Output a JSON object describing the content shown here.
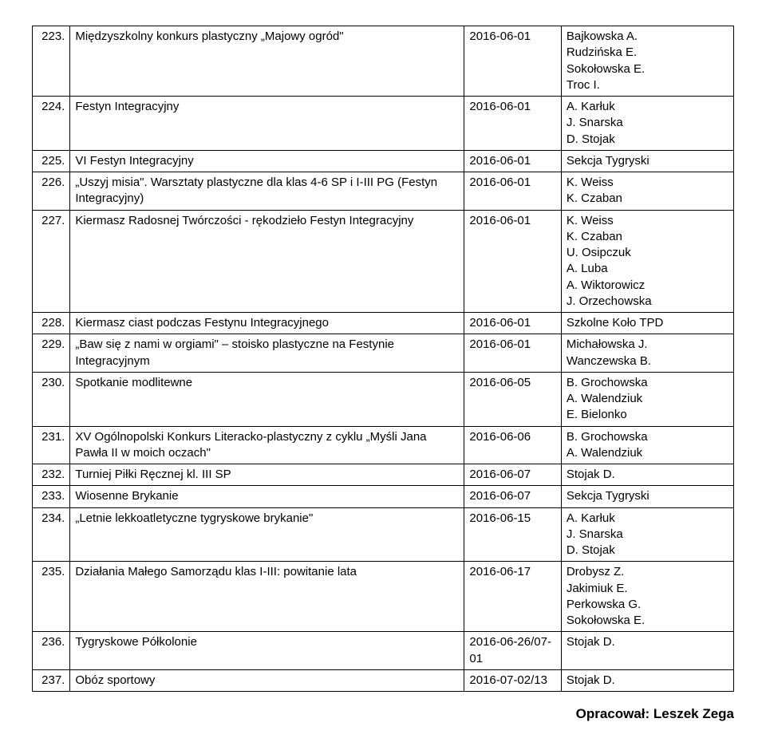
{
  "rows": [
    {
      "n": "223.",
      "desc": "Międzyszkolny konkurs plastyczny „Majowy ogród\"",
      "date": "2016-06-01",
      "who": "Bajkowska A.\nRudzińska E.\nSokołowska E.\nTroc I."
    },
    {
      "n": "224.",
      "desc": "Festyn Integracyjny",
      "date": "2016-06-01",
      "who": "A. Karłuk\nJ. Snarska\nD. Stojak"
    },
    {
      "n": "225.",
      "desc": "VI Festyn Integracyjny",
      "date": "2016-06-01",
      "who": "Sekcja Tygryski"
    },
    {
      "n": "226.",
      "desc": "„Uszyj misia\". Warsztaty plastyczne dla klas 4-6 SP i I-III PG (Festyn Integracyjny)",
      "date": "2016-06-01",
      "who": "K. Weiss\nK. Czaban"
    },
    {
      "n": "227.",
      "desc": "Kiermasz Radosnej Twórczości - rękodzieło Festyn Integracyjny",
      "date": "2016-06-01",
      "who": "K. Weiss\nK. Czaban\nU. Osipczuk\nA. Luba\nA. Wiktorowicz\nJ. Orzechowska"
    },
    {
      "n": "228.",
      "desc": "Kiermasz ciast podczas Festynu Integracyjnego",
      "date": "2016-06-01",
      "who": "Szkolne Koło TPD"
    },
    {
      "n": "229.",
      "desc": "„Baw się z nami w orgiami\" – stoisko plastyczne na Festynie Integracyjnym",
      "date": "2016-06-01",
      "who": "Michałowska J.\nWanczewska B."
    },
    {
      "n": "230.",
      "desc": "Spotkanie modlitewne",
      "date": "2016-06-05",
      "who": "B. Grochowska\nA. Walendziuk\nE. Bielonko"
    },
    {
      "n": "231.",
      "desc": "XV Ogólnopolski Konkurs Literacko-plastyczny z cyklu „Myśli Jana Pawła II w moich oczach\"",
      "date": "2016-06-06",
      "who": "B. Grochowska\nA. Walendziuk"
    },
    {
      "n": "232.",
      "desc": "Turniej Piłki Ręcznej kl. III SP",
      "date": "2016-06-07",
      "who": "Stojak D."
    },
    {
      "n": "233.",
      "desc": "Wiosenne Brykanie",
      "date": "2016-06-07",
      "who": "Sekcja Tygryski"
    },
    {
      "n": "234.",
      "desc": "„Letnie lekkoatletyczne tygryskowe brykanie\"",
      "date": "2016-06-15",
      "who": "A. Karłuk\nJ. Snarska\nD. Stojak"
    },
    {
      "n": "235.",
      "desc": "Działania Małego Samorządu klas I-III: powitanie lata",
      "date": "2016-06-17",
      "who": "Drobysz Z.\nJakimiuk E.\nPerkowska G.\nSokołowska E."
    },
    {
      "n": "236.",
      "desc": "Tygryskowe Półkolonie",
      "date": "2016-06-26/07-01",
      "who": "Stojak D."
    },
    {
      "n": "237.",
      "desc": "Obóz sportowy",
      "date": "2016-07-02/13",
      "who": "Stojak D."
    }
  ],
  "footer": "Opracował: Leszek Zega"
}
